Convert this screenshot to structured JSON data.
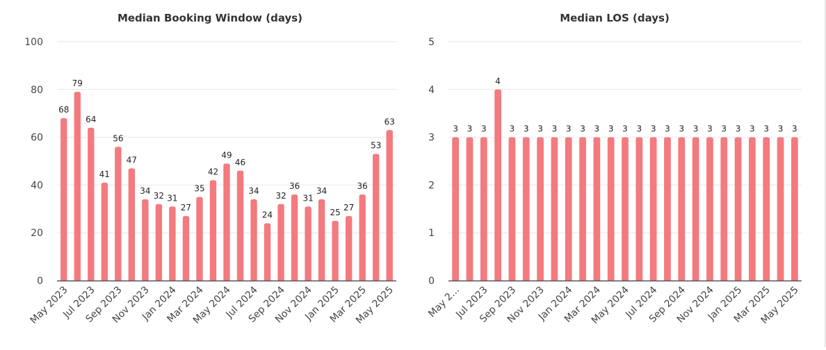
{
  "colors": {
    "bar": "#f37a7e",
    "grid": "#e6e6e6",
    "axis": "#555555",
    "text": "#333333"
  },
  "chart_data": [
    {
      "type": "bar",
      "title": "Median Booking Window (days)",
      "xlabel": "",
      "ylabel": "",
      "ylim": [
        0,
        100
      ],
      "yticks": [
        0,
        20,
        40,
        60,
        80,
        100
      ],
      "grid": true,
      "categories": [
        "May 2023",
        "Jun 2023",
        "Jul 2023",
        "Aug 2023",
        "Sep 2023",
        "Oct 2023",
        "Nov 2023",
        "Dec 2023",
        "Jan 2024",
        "Feb 2024",
        "Mar 2024",
        "Apr 2024",
        "May 2024",
        "Jun 2024",
        "Jul 2024",
        "Aug 2024",
        "Sep 2024",
        "Oct 2024",
        "Nov 2024",
        "Dec 2024",
        "Jan 2025",
        "Feb 2025",
        "Mar 2025",
        "Apr 2025",
        "May 2025"
      ],
      "xtick_labels": [
        "May 2023",
        "Jul 2023",
        "Sep 2023",
        "Nov 2023",
        "Jan 2024",
        "Mar 2024",
        "May 2024",
        "Jul 2024",
        "Sep 2024",
        "Nov 2024",
        "Jan 2025",
        "Mar 2025",
        "May 2025"
      ],
      "values": [
        68,
        79,
        64,
        41,
        56,
        47,
        34,
        32,
        31,
        27,
        35,
        42,
        49,
        46,
        34,
        24,
        32,
        36,
        31,
        34,
        25,
        27,
        36,
        53,
        63
      ]
    },
    {
      "type": "bar",
      "title": "Median LOS (days)",
      "xlabel": "",
      "ylabel": "",
      "ylim": [
        0,
        5
      ],
      "yticks": [
        0,
        1,
        2,
        3,
        4,
        5
      ],
      "grid": true,
      "categories": [
        "May 2023",
        "Jun 2023",
        "Jul 2023",
        "Aug 2023",
        "Sep 2023",
        "Oct 2023",
        "Nov 2023",
        "Dec 2023",
        "Jan 2024",
        "Feb 2024",
        "Mar 2024",
        "Apr 2024",
        "May 2024",
        "Jun 2024",
        "Jul 2024",
        "Aug 2024",
        "Sep 2024",
        "Oct 2024",
        "Nov 2024",
        "Dec 2024",
        "Jan 2025",
        "Feb 2025",
        "Mar 2025",
        "Apr 2025",
        "May 2025"
      ],
      "xtick_labels": [
        "May 2...",
        "Jul 2023",
        "Sep 2023",
        "Nov 2023",
        "Jan 2024",
        "Mar 2024",
        "May 2024",
        "Jul 2024",
        "Sep 2024",
        "Nov 2024",
        "Jan 2025",
        "Mar 2025",
        "May 2025"
      ],
      "values": [
        3,
        3,
        3,
        4,
        3,
        3,
        3,
        3,
        3,
        3,
        3,
        3,
        3,
        3,
        3,
        3,
        3,
        3,
        3,
        3,
        3,
        3,
        3,
        3,
        3
      ]
    }
  ]
}
